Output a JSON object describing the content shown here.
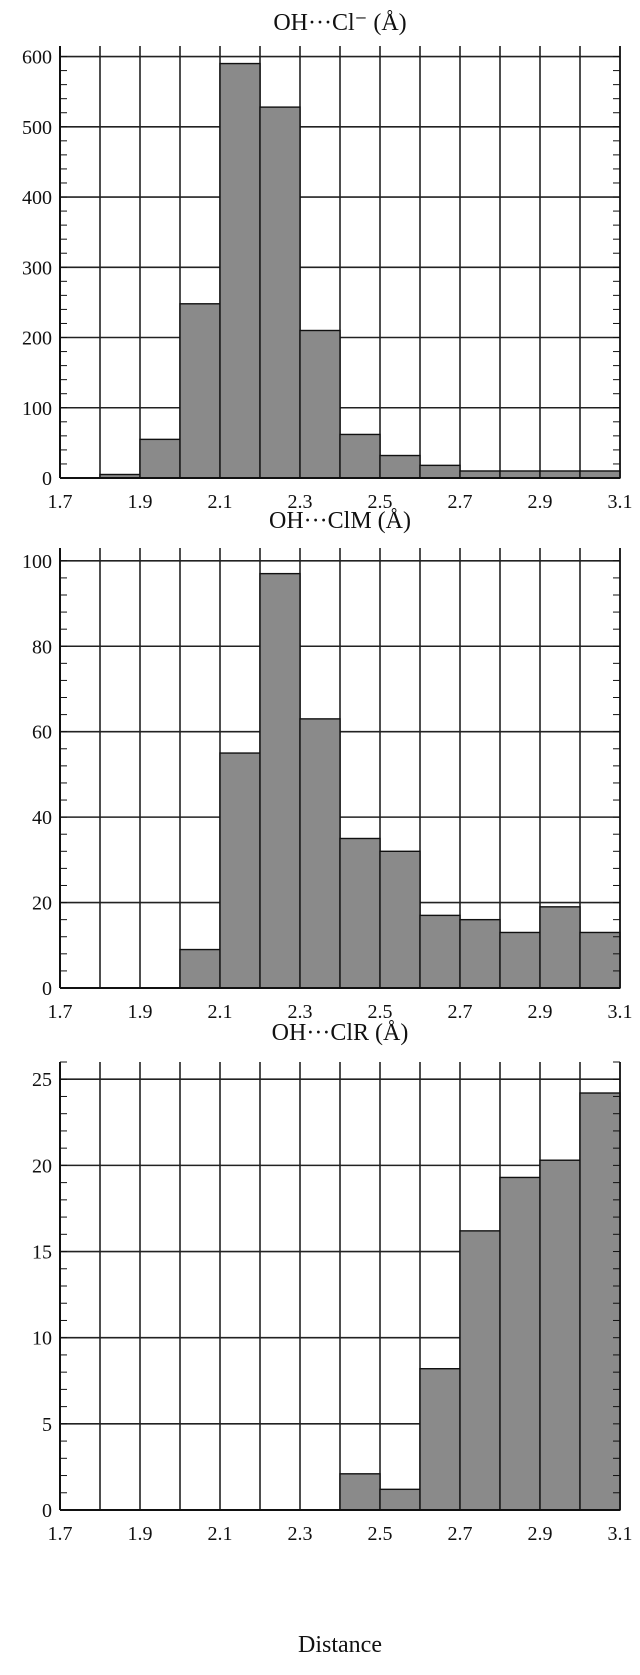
{
  "chart_data": [
    {
      "type": "bar",
      "title": "OH···Cl⁻ (Å)",
      "xlabel": "",
      "ylabel": "",
      "x_bin_edges": [
        1.7,
        1.8,
        1.9,
        2.0,
        2.1,
        2.2,
        2.3,
        2.4,
        2.5,
        2.6,
        2.7,
        2.8,
        2.9,
        3.0,
        3.1
      ],
      "values": [
        0,
        5,
        55,
        248,
        590,
        528,
        210,
        62,
        32,
        18,
        10,
        10,
        10,
        10
      ],
      "xticks": [
        "1.7",
        "1.9",
        "2.1",
        "2.3",
        "2.5",
        "2.7",
        "2.9",
        "3.1"
      ],
      "yticks": [
        "0",
        "100",
        "200",
        "300",
        "400",
        "500",
        "600"
      ],
      "xlim": [
        1.7,
        3.1
      ],
      "ylim": [
        0,
        615
      ],
      "grid": true
    },
    {
      "type": "bar",
      "title": "OH···ClM (Å)",
      "xlabel": "",
      "ylabel": "",
      "x_bin_edges": [
        1.7,
        1.8,
        1.9,
        2.0,
        2.1,
        2.2,
        2.3,
        2.4,
        2.5,
        2.6,
        2.7,
        2.8,
        2.9,
        3.0,
        3.1
      ],
      "values": [
        0,
        0,
        0,
        9,
        55,
        97,
        63,
        35,
        32,
        17,
        16,
        13,
        19,
        13
      ],
      "xticks": [
        "1.7",
        "1.9",
        "2.1",
        "2.3",
        "2.5",
        "2.7",
        "2.9",
        "3.1"
      ],
      "yticks": [
        "0",
        "20",
        "40",
        "60",
        "80",
        "100"
      ],
      "xlim": [
        1.7,
        3.1
      ],
      "ylim": [
        0,
        103
      ],
      "grid": true
    },
    {
      "type": "bar",
      "title": "OH···ClR (Å)",
      "xlabel": "Distance",
      "ylabel": "",
      "x_bin_edges": [
        1.7,
        1.8,
        1.9,
        2.0,
        2.1,
        2.2,
        2.3,
        2.4,
        2.5,
        2.6,
        2.7,
        2.8,
        2.9,
        3.0,
        3.1
      ],
      "values": [
        0,
        0,
        0,
        0,
        0,
        0,
        0,
        2.1,
        1.2,
        8.2,
        16.2,
        19.3,
        20.3,
        24.2
      ],
      "xticks": [
        "1.7",
        "1.9",
        "2.1",
        "2.3",
        "2.5",
        "2.7",
        "2.9",
        "3.1"
      ],
      "yticks": [
        "0",
        "5",
        "10",
        "15",
        "20",
        "25"
      ],
      "xlim": [
        1.7,
        3.1
      ],
      "ylim": [
        0,
        26
      ],
      "grid": true
    }
  ],
  "colors": {
    "bar_fill": "#8a8a8a",
    "bar_stroke": "#111111",
    "grid": "#222222",
    "axis": "#111111"
  }
}
